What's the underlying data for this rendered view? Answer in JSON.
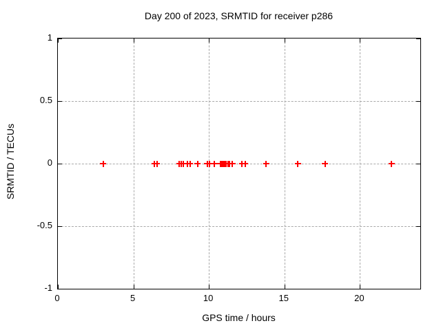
{
  "title": "Day 200 of 2023, SRMTID for receiver p286",
  "chart_data": {
    "type": "scatter",
    "title": "Day 200 of 2023, SRMTID for receiver p286",
    "xlabel": "GPS time / hours",
    "ylabel": "SRMTID / TECUs",
    "xlim": [
      0,
      24
    ],
    "ylim": [
      -1,
      1
    ],
    "grid": true,
    "legend": "none",
    "marker": "plus",
    "marker_color": "#ff0000",
    "grid_color": "#a8a8a8",
    "border_color": "#000000",
    "background_color": "#ffffff",
    "x_ticks": [
      {
        "v": 0,
        "label": "0"
      },
      {
        "v": 5,
        "label": "5"
      },
      {
        "v": 10,
        "label": "10"
      },
      {
        "v": 15,
        "label": "15"
      },
      {
        "v": 20,
        "label": "20"
      }
    ],
    "y_ticks": [
      {
        "v": 1,
        "label": "1"
      },
      {
        "v": 0.5,
        "label": "0.5"
      },
      {
        "v": 0,
        "label": "0"
      },
      {
        "v": -0.5,
        "label": "-0.5"
      },
      {
        "v": -1,
        "label": "-1"
      }
    ],
    "series": [
      {
        "name": "SRMTID",
        "x": [
          3.0,
          6.4,
          6.55,
          8.05,
          8.15,
          8.3,
          8.6,
          8.75,
          9.25,
          9.9,
          10.05,
          10.35,
          10.75,
          10.85,
          10.95,
          11.05,
          11.15,
          11.25,
          11.35,
          11.55,
          12.2,
          12.4,
          13.8,
          15.9,
          17.7,
          22.1
        ],
        "y": [
          0,
          0,
          0,
          0,
          0,
          0,
          0,
          0,
          0,
          0,
          0,
          0,
          0,
          0,
          0,
          0,
          0,
          0,
          0,
          0,
          0,
          0,
          0,
          0,
          0,
          0
        ]
      }
    ]
  }
}
